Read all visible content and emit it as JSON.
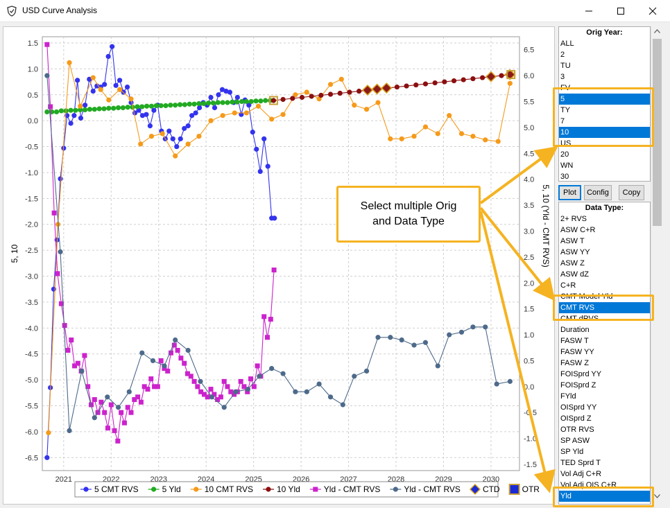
{
  "window": {
    "title": "USD Curve Analysis",
    "minimize_label": "—",
    "maximize_label": "☐",
    "close_label": "✕"
  },
  "icons": {
    "app": "shield-app-icon",
    "minimize": "minimize-icon",
    "maximize": "maximize-icon",
    "close": "close-icon",
    "scroll_up": "chevron-up-icon",
    "scroll_down": "chevron-down-icon"
  },
  "orig_year": {
    "header": "Orig Year:",
    "items": [
      {
        "label": "ALL",
        "selected": false
      },
      {
        "label": "2",
        "selected": false
      },
      {
        "label": "TU",
        "selected": false
      },
      {
        "label": "3",
        "selected": false
      },
      {
        "label": "FV",
        "selected": false
      },
      {
        "label": "5",
        "selected": true
      },
      {
        "label": "TY",
        "selected": false
      },
      {
        "label": "7",
        "selected": false
      },
      {
        "label": "10",
        "selected": true
      },
      {
        "label": "US",
        "selected": false
      },
      {
        "label": "20",
        "selected": false
      },
      {
        "label": "WN",
        "selected": false
      },
      {
        "label": "30",
        "selected": false
      }
    ]
  },
  "buttons": {
    "plot": "Plot",
    "config": "Config",
    "copy": "Copy"
  },
  "data_type": {
    "header": "Data Type:",
    "items": [
      {
        "label": "2+ RVS",
        "selected": false
      },
      {
        "label": "ASW C+R",
        "selected": false
      },
      {
        "label": "ASW T",
        "selected": false
      },
      {
        "label": "ASW YY",
        "selected": false
      },
      {
        "label": "ASW Z",
        "selected": false
      },
      {
        "label": "ASW dZ",
        "selected": false
      },
      {
        "label": "C+R",
        "selected": false
      },
      {
        "label": "CMT Model Yld",
        "selected": false
      },
      {
        "label": "CMT RVS",
        "selected": true
      },
      {
        "label": "CMT dRVS",
        "selected": false
      },
      {
        "label": "Duration",
        "selected": false
      },
      {
        "label": "FASW T",
        "selected": false
      },
      {
        "label": "FASW YY",
        "selected": false
      },
      {
        "label": "FASW Z",
        "selected": false
      },
      {
        "label": "FOISprd YY",
        "selected": false
      },
      {
        "label": "FOISprd Z",
        "selected": false
      },
      {
        "label": "FYld",
        "selected": false
      },
      {
        "label": "OISprd YY",
        "selected": false
      },
      {
        "label": "OISprd Z",
        "selected": false
      },
      {
        "label": "OTR RVS",
        "selected": false
      },
      {
        "label": "SP ASW",
        "selected": false
      },
      {
        "label": "SP Yld",
        "selected": false
      },
      {
        "label": "TED Sprd T",
        "selected": false
      },
      {
        "label": "Vol Adj C+R",
        "selected": false
      },
      {
        "label": "Vol Adj OIS C+R",
        "selected": false
      },
      {
        "label": "Yld",
        "selected": true
      }
    ]
  },
  "callout": {
    "line1": "Select multiple Orig",
    "line2": "and Data Type"
  },
  "accent_color": "#f5b321",
  "selection_color": "#0078d7",
  "chart_data": {
    "type": "line",
    "title": "",
    "ylabel": "5, 10",
    "y2label": "5, 10 (Yld - CMT RVS)",
    "xlabel": "",
    "ylim": [
      -6.75,
      1.62
    ],
    "y2lim": [
      -1.62,
      6.75
    ],
    "xlim": [
      2020.55,
      2030.6
    ],
    "yticks": [
      "1.5",
      "1.0",
      "0.5",
      "0.0",
      "-0.5",
      "-1.0",
      "-1.5",
      "-2.0",
      "-2.5",
      "-3.0",
      "-3.5",
      "-4.0",
      "-4.5",
      "-5.0",
      "-5.5",
      "-6.0",
      "-6.5"
    ],
    "y2ticks": [
      "6.5",
      "6.0",
      "5.5",
      "5.0",
      "4.5",
      "4.0",
      "3.5",
      "3.0",
      "2.5",
      "2.0",
      "1.5",
      "1.0",
      "0.5",
      "0.0",
      "-0.5",
      "-1.0",
      "-1.5"
    ],
    "xticks": [
      "2021",
      "2022",
      "2023",
      "2024",
      "2025",
      "2026",
      "2027",
      "2028",
      "2029",
      "2030"
    ],
    "grid": true,
    "legend_position": "bottom",
    "series": [
      {
        "name": "5 CMT RVS",
        "axis": "left",
        "color": "#3333ee",
        "marker": "circle",
        "x": [
          2020.65,
          2020.72,
          2020.79,
          2020.86,
          2020.93,
          2021.0,
          2021.07,
          2021.15,
          2021.22,
          2021.29,
          2021.36,
          2021.45,
          2021.54,
          2021.62,
          2021.7,
          2021.78,
          2021.86,
          2021.94,
          2022.02,
          2022.1,
          2022.18,
          2022.26,
          2022.34,
          2022.42,
          2022.5,
          2022.58,
          2022.66,
          2022.74,
          2022.82,
          2022.9,
          2022.98,
          2023.06,
          2023.14,
          2023.22,
          2023.3,
          2023.38,
          2023.46,
          2023.54,
          2023.62,
          2023.7,
          2023.78,
          2023.86,
          2023.94,
          2024.02,
          2024.1,
          2024.18,
          2024.26,
          2024.34,
          2024.42,
          2024.5,
          2024.58,
          2024.66,
          2024.74,
          2024.82,
          2024.9,
          2024.98,
          2025.06,
          2025.14,
          2025.22,
          2025.3,
          2025.38,
          2025.44
        ],
        "y": [
          -6.5,
          -5.15,
          -3.25,
          -2.3,
          -1.12,
          -0.53,
          0.1,
          -0.05,
          0.1,
          0.78,
          0.05,
          0.3,
          0.8,
          0.57,
          0.67,
          0.65,
          0.7,
          1.24,
          1.43,
          0.68,
          0.78,
          0.55,
          0.65,
          0.35,
          0.15,
          0.2,
          0.1,
          0.12,
          -0.1,
          0.2,
          0.3,
          -0.2,
          -0.35,
          -0.2,
          -0.35,
          -0.5,
          -0.35,
          -0.15,
          -0.1,
          0.1,
          0.15,
          0.25,
          0.35,
          0.3,
          0.45,
          0.25,
          0.5,
          0.6,
          0.57,
          0.55,
          0.35,
          0.45,
          0.12,
          0.4,
          0.3,
          -0.22,
          -0.55,
          -0.98,
          -0.35,
          -0.88,
          -1.88,
          -1.88
        ]
      },
      {
        "name": "5 Yld",
        "axis": "right",
        "color": "#22aa22",
        "marker": "circle",
        "x": [
          2020.65,
          2020.75,
          2020.85,
          2020.95,
          2021.05,
          2021.15,
          2021.25,
          2021.35,
          2021.45,
          2021.55,
          2021.65,
          2021.75,
          2021.85,
          2021.95,
          2022.05,
          2022.15,
          2022.25,
          2022.35,
          2022.45,
          2022.55,
          2022.65,
          2022.75,
          2022.85,
          2022.95,
          2023.05,
          2023.15,
          2023.25,
          2023.35,
          2023.45,
          2023.55,
          2023.65,
          2023.75,
          2023.85,
          2023.95,
          2024.05,
          2024.15,
          2024.25,
          2024.35,
          2024.45,
          2024.55,
          2024.65,
          2024.75,
          2024.85,
          2024.95,
          2025.05,
          2025.15,
          2025.25,
          2025.35,
          2025.42
        ],
        "y": [
          5.3,
          5.3,
          5.3,
          5.32,
          5.32,
          5.33,
          5.33,
          5.34,
          5.34,
          5.35,
          5.35,
          5.36,
          5.36,
          5.37,
          5.37,
          5.38,
          5.38,
          5.39,
          5.39,
          5.4,
          5.4,
          5.41,
          5.41,
          5.42,
          5.42,
          5.42,
          5.43,
          5.43,
          5.44,
          5.44,
          5.45,
          5.45,
          5.46,
          5.46,
          5.47,
          5.47,
          5.48,
          5.48,
          5.48,
          5.49,
          5.49,
          5.5,
          5.5,
          5.5,
          5.51,
          5.51,
          5.52,
          5.52,
          5.52
        ]
      },
      {
        "name": "10 CMT RVS",
        "axis": "left",
        "color": "#f59a1a",
        "marker": "circle",
        "x": [
          2020.68,
          2020.88,
          2021.12,
          2021.35,
          2021.62,
          2021.78,
          2021.95,
          2022.18,
          2022.42,
          2022.62,
          2022.85,
          2023.08,
          2023.35,
          2023.62,
          2023.85,
          2024.1,
          2024.35,
          2024.6,
          2024.85,
          2025.1,
          2025.38,
          2025.62,
          2025.88,
          2026.12,
          2026.38,
          2026.62,
          2026.85,
          2027.12,
          2027.38,
          2027.62,
          2027.88,
          2028.12,
          2028.38,
          2028.62,
          2028.88,
          2029.12,
          2029.38,
          2029.62,
          2029.88,
          2030.15,
          2030.4
        ],
        "y": [
          -6.02,
          -2.0,
          1.12,
          0.28,
          0.83,
          0.6,
          0.4,
          0.6,
          0.42,
          -0.45,
          -0.3,
          -0.25,
          -0.68,
          -0.45,
          -0.3,
          0.0,
          0.1,
          0.15,
          0.15,
          0.28,
          0.03,
          0.12,
          0.5,
          0.55,
          0.42,
          0.7,
          0.8,
          0.3,
          0.22,
          0.35,
          -0.35,
          -0.35,
          -0.3,
          -0.12,
          -0.25,
          0.1,
          -0.25,
          -0.3,
          -0.37,
          -0.4,
          0.72
        ]
      },
      {
        "name": "10 Yld",
        "axis": "right",
        "color": "#8b0f0f",
        "marker": "circle",
        "x": [
          2025.42,
          2025.62,
          2025.82,
          2026.02,
          2026.22,
          2026.42,
          2026.62,
          2026.82,
          2027.02,
          2027.22,
          2027.42,
          2027.62,
          2027.82,
          2028.02,
          2028.22,
          2028.42,
          2028.62,
          2028.82,
          2029.02,
          2029.22,
          2029.42,
          2029.62,
          2029.82,
          2030.02,
          2030.22,
          2030.42
        ],
        "y": [
          5.52,
          5.54,
          5.56,
          5.58,
          5.6,
          5.62,
          5.64,
          5.66,
          5.68,
          5.7,
          5.72,
          5.74,
          5.76,
          5.78,
          5.8,
          5.82,
          5.84,
          5.86,
          5.88,
          5.9,
          5.92,
          5.94,
          5.96,
          5.98,
          6.0,
          6.02
        ]
      },
      {
        "name": "Yld - CMT RVS",
        "axis": "right",
        "color": "#cc22cc",
        "marker": "square",
        "x": [
          2020.65,
          2020.72,
          2020.8,
          2020.87,
          2020.95,
          2021.02,
          2021.09,
          2021.16,
          2021.23,
          2021.3,
          2021.37,
          2021.44,
          2021.51,
          2021.58,
          2021.65,
          2021.72,
          2021.79,
          2021.86,
          2021.93,
          2022.0,
          2022.07,
          2022.14,
          2022.21,
          2022.28,
          2022.35,
          2022.42,
          2022.49,
          2022.56,
          2022.63,
          2022.7,
          2022.77,
          2022.84,
          2022.91,
          2022.98,
          2023.05,
          2023.12,
          2023.19,
          2023.26,
          2023.33,
          2023.4,
          2023.47,
          2023.54,
          2023.61,
          2023.68,
          2023.75,
          2023.82,
          2023.89,
          2023.96,
          2024.03,
          2024.1,
          2024.17,
          2024.24,
          2024.31,
          2024.38,
          2024.45,
          2024.52,
          2024.59,
          2024.66,
          2024.73,
          2024.8,
          2024.87,
          2024.94,
          2025.01,
          2025.08,
          2025.15,
          2025.22,
          2025.29,
          2025.36,
          2025.43
        ],
        "y": [
          6.6,
          5.4,
          3.35,
          2.18,
          1.6,
          1.18,
          0.7,
          0.9,
          0.4,
          0.45,
          0.3,
          0.6,
          0.0,
          -0.35,
          -0.25,
          -0.5,
          -0.3,
          -0.5,
          -0.8,
          -0.35,
          -0.85,
          -1.05,
          -0.5,
          -0.7,
          -0.4,
          -0.5,
          -0.25,
          -0.2,
          -0.3,
          0.0,
          -0.05,
          0.15,
          0.0,
          0.0,
          0.5,
          0.35,
          0.3,
          0.65,
          0.8,
          0.7,
          0.55,
          0.45,
          0.25,
          0.2,
          0.1,
          0.0,
          -0.1,
          -0.15,
          -0.2,
          -0.05,
          -0.15,
          -0.25,
          -0.2,
          0.1,
          0.0,
          -0.1,
          -0.15,
          -0.1,
          0.1,
          0.0,
          -0.1,
          0.15,
          0.0,
          0.4,
          0.2,
          1.35,
          0.95,
          1.3,
          2.25
        ]
      },
      {
        "name": "Yld - CMT RVS",
        "axis": "right",
        "color": "#4d6a8a",
        "marker": "circle",
        "x": [
          2020.65,
          2020.93,
          2021.12,
          2021.38,
          2021.65,
          2021.92,
          2022.15,
          2022.38,
          2022.65,
          2022.88,
          2023.12,
          2023.35,
          2023.62,
          2023.88,
          2024.12,
          2024.38,
          2024.62,
          2024.88,
          2025.12,
          2025.38,
          2025.62,
          2025.88,
          2026.12,
          2026.38,
          2026.62,
          2026.88,
          2027.12,
          2027.38,
          2027.62,
          2027.88,
          2028.12,
          2028.38,
          2028.62,
          2028.88,
          2029.12,
          2029.38,
          2029.62,
          2029.88,
          2030.12,
          2030.4
        ],
        "y": [
          6.0,
          2.6,
          -0.85,
          0.3,
          -0.6,
          -0.2,
          -0.4,
          -0.1,
          0.65,
          0.5,
          0.4,
          0.9,
          0.7,
          0.1,
          -0.2,
          -0.4,
          -0.1,
          -0.05,
          0.2,
          0.35,
          0.25,
          -0.1,
          -0.1,
          0.05,
          -0.2,
          -0.35,
          0.2,
          0.3,
          0.95,
          0.95,
          0.9,
          0.8,
          0.85,
          0.4,
          1.0,
          1.05,
          1.15,
          1.15,
          0.05,
          0.1
        ]
      },
      {
        "name": "CTD",
        "axis": "right",
        "color": "#8b1a1a",
        "marker": "diamond",
        "x": [
          2027.4,
          2027.6,
          2027.8,
          2030.0,
          2030.4
        ],
        "y": [
          5.72,
          5.74,
          5.76,
          5.98,
          6.02
        ]
      },
      {
        "name": "OTR",
        "axis": "right",
        "color": "#1a2bd6",
        "marker": "square-outline",
        "x": [
          2025.42,
          2030.42
        ],
        "y": [
          5.52,
          6.02
        ]
      }
    ]
  }
}
